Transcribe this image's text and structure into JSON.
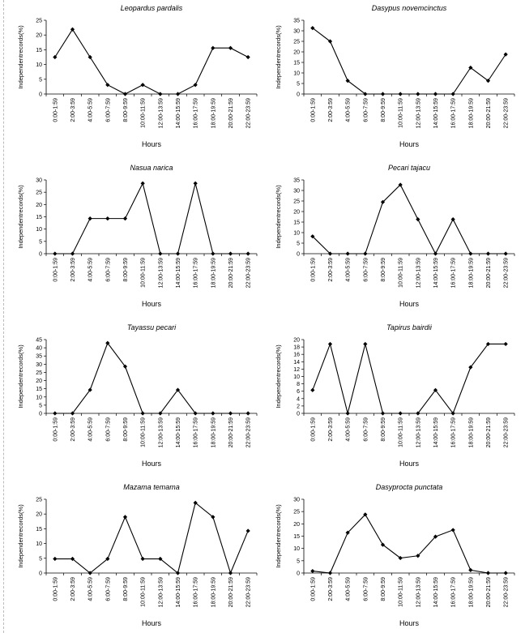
{
  "chart_data": [
    {
      "type": "line",
      "title": "Leopardus pardalis",
      "xlabel": "Hours",
      "ylabel": "Independentrecords(%)",
      "ylim": [
        0,
        25
      ],
      "yticks": [
        0,
        5,
        10,
        15,
        20,
        25
      ],
      "categories": [
        "0:00-1:59",
        "2:00-3:59",
        "4:00-5:59",
        "6:00-7:59",
        "8:00-9:59",
        "10:00-11:59",
        "12:00-13:59",
        "14:00-15:59",
        "16:00-17:59",
        "18:00-19:59",
        "20:00-21:59",
        "22:00-23:59"
      ],
      "values": [
        12.5,
        21.9,
        12.5,
        3.1,
        0,
        3.1,
        0,
        0,
        3.1,
        15.6,
        15.6,
        12.5
      ]
    },
    {
      "type": "line",
      "title": "Dasypus novemcinctus",
      "xlabel": "Hours",
      "ylabel": "Independentrecords(%)",
      "ylim": [
        0,
        35
      ],
      "yticks": [
        0,
        5,
        10,
        15,
        20,
        25,
        30,
        35
      ],
      "categories": [
        "0:00-1:59",
        "2:00-3:59",
        "4:00-5:59",
        "6:00-7:59",
        "8:00-9:59",
        "10:00-11:59",
        "12:00-13:59",
        "14:00-15:59",
        "16:00-17:59",
        "18:00-19:59",
        "20:00-21:59",
        "22:00-23:59"
      ],
      "values": [
        31.3,
        25,
        6.3,
        0,
        0,
        0,
        0,
        0,
        0,
        12.5,
        6.3,
        18.8
      ]
    },
    {
      "type": "line",
      "title": "Nasua narica",
      "xlabel": "Hours",
      "ylabel": "Independentrecords(%)",
      "ylim": [
        0,
        30
      ],
      "yticks": [
        0,
        5,
        10,
        15,
        20,
        25,
        30
      ],
      "categories": [
        "0:00-1:59",
        "2:00-3:59",
        "4:00-5:59",
        "6:00-7:59",
        "8:00-9:59",
        "10:00-11:59",
        "12:00-13:59",
        "14:00-15:59",
        "16:00-17:59",
        "18:00-19:59",
        "20:00-21:59",
        "22:00-23:59"
      ],
      "values": [
        0,
        0,
        14.3,
        14.3,
        14.3,
        28.6,
        0,
        0,
        28.6,
        0,
        0,
        0
      ]
    },
    {
      "type": "line",
      "title": "Pecari tajacu",
      "xlabel": "Hours",
      "ylabel": "Independentrecords(%)",
      "ylim": [
        0,
        35
      ],
      "yticks": [
        0,
        5,
        10,
        15,
        20,
        25,
        30,
        35
      ],
      "categories": [
        "0:00-1:59",
        "2:00-3:59",
        "4:00-5:59",
        "6:00-7:59",
        "8:00-9:59",
        "10:00-11:59",
        "12:00-13:59",
        "14:00-15:59",
        "16:00-17:59",
        "18:00-19:59",
        "20:00-21:59",
        "22:00-23:59"
      ],
      "values": [
        8.2,
        0,
        0,
        0,
        24.5,
        32.7,
        16.3,
        0,
        16.3,
        0,
        0,
        0
      ]
    },
    {
      "type": "line",
      "title": "Tayassu pecari",
      "xlabel": "Hours",
      "ylabel": "Independentrecords(%)",
      "ylim": [
        0,
        45
      ],
      "yticks": [
        0,
        5,
        10,
        15,
        20,
        25,
        30,
        35,
        40,
        45
      ],
      "categories": [
        "0:00-1:59",
        "2:00-3:59",
        "4:00-5:59",
        "6:00-7:59",
        "8:00-9:59",
        "10:00-11:59",
        "12:00-13:59",
        "14:00-15:59",
        "16:00-17:59",
        "18:00-19:59",
        "20:00-21:59",
        "22:00-23:59"
      ],
      "values": [
        0,
        0,
        14.3,
        42.9,
        28.6,
        0,
        0,
        14.3,
        0,
        0,
        0,
        0
      ]
    },
    {
      "type": "line",
      "title": "Tapirus bairdii",
      "xlabel": "Hours",
      "ylabel": "Independentrecords(%)",
      "ylim": [
        0,
        20
      ],
      "yticks": [
        0,
        2,
        4,
        6,
        8,
        10,
        12,
        14,
        16,
        18,
        20
      ],
      "categories": [
        "0:00-1:59",
        "2:00-3:59",
        "4:00-5:59",
        "6:00-7:59",
        "8:00-9:59",
        "10:00-11:59",
        "12:00-13:59",
        "14:00-15:59",
        "16:00-17:59",
        "18:00-19:59",
        "20:00-21:59",
        "22:00-23:59"
      ],
      "values": [
        6.3,
        18.8,
        0,
        18.8,
        0,
        0,
        0,
        6.3,
        0,
        12.5,
        18.8,
        18.8
      ]
    },
    {
      "type": "line",
      "title": "Mazama temama",
      "xlabel": "Hours",
      "ylabel": "Independentrecords(%)",
      "ylim": [
        0,
        25
      ],
      "yticks": [
        0,
        5,
        10,
        15,
        20,
        25
      ],
      "categories": [
        "0:00-1:59",
        "2:00-3:59",
        "4:00-5:59",
        "6:00-7:59",
        "8:00-9:59",
        "10:00-11:59",
        "12:00-13:59",
        "14:00-15:59",
        "16:00-17:59",
        "18:00-19:59",
        "20:00-21:59",
        "22:00-23:59"
      ],
      "values": [
        4.8,
        4.8,
        0,
        4.8,
        19,
        4.8,
        4.8,
        0,
        23.8,
        19,
        0,
        14.3
      ]
    },
    {
      "type": "line",
      "title": "Dasyprocta punctata",
      "xlabel": "Hours",
      "ylabel": "Independentrecords(%)",
      "ylim": [
        0,
        30
      ],
      "yticks": [
        0,
        5,
        10,
        15,
        20,
        25,
        30
      ],
      "categories": [
        "0:00-1:59",
        "2:00-3:59",
        "4:00-5:59",
        "6:00-7:59",
        "8:00-9:59",
        "10:00-11:59",
        "12:00-13:59",
        "14:00-15:59",
        "16:00-17:59",
        "18:00-19:59",
        "20:00-21:59",
        "22:00-23:59"
      ],
      "values": [
        0.8,
        0,
        16.4,
        23.8,
        11.5,
        6.1,
        7,
        14.8,
        17.5,
        1.2,
        0,
        0
      ]
    }
  ]
}
